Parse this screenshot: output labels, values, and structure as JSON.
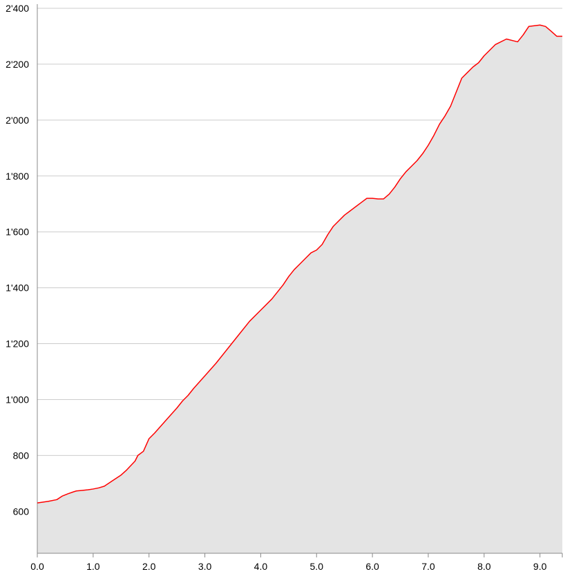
{
  "chart_data": {
    "type": "area",
    "title": "",
    "xlabel": "",
    "ylabel": "",
    "xlim": [
      0,
      9.4
    ],
    "ylim": [
      450,
      2400
    ],
    "grid": true,
    "x_ticks": [
      0,
      1,
      2,
      3,
      4,
      5,
      6,
      7,
      8,
      9
    ],
    "x_tick_labels": [
      "0.0",
      "1.0",
      "2.0",
      "3.0",
      "4.0",
      "5.0",
      "6.0",
      "7.0",
      "8.0",
      "9.0"
    ],
    "y_ticks": [
      600,
      800,
      1000,
      1200,
      1400,
      1600,
      1800,
      2000,
      2200,
      2400
    ],
    "y_tick_labels": [
      "600",
      "800",
      "1'000",
      "1'200",
      "1'400",
      "1'600",
      "1'800",
      "2'000",
      "2'200",
      "2'400"
    ],
    "colors": {
      "line": "#ff0000",
      "fill": "#e4e4e4",
      "grid": "#cccccc",
      "axis": "#888888"
    },
    "series": [
      {
        "x": [
          0,
          0.2,
          0.35,
          0.45,
          0.55,
          0.65,
          0.7,
          0.8,
          0.9,
          1.0,
          1.1,
          1.2,
          1.35,
          1.5,
          1.6,
          1.75,
          1.8,
          1.9,
          2.0,
          2.1,
          2.3,
          2.5,
          2.6,
          2.7,
          2.8,
          3.0,
          3.2,
          3.4,
          3.6,
          3.8,
          4.0,
          4.2,
          4.4,
          4.5,
          4.6,
          4.7,
          4.8,
          4.9,
          5.0,
          5.1,
          5.2,
          5.3,
          5.4,
          5.5,
          5.6,
          5.7,
          5.8,
          5.9,
          6.0,
          6.1,
          6.2,
          6.3,
          6.4,
          6.5,
          6.6,
          6.7,
          6.8,
          6.9,
          7.0,
          7.1,
          7.2,
          7.3,
          7.4,
          7.5,
          7.6,
          7.7,
          7.8,
          7.9,
          8.0,
          8.2,
          8.4,
          8.6,
          8.7,
          8.8,
          9.0,
          9.1,
          9.2,
          9.3,
          9.4
        ],
        "y": [
          630,
          636,
          642,
          655,
          663,
          670,
          673,
          675,
          677,
          680,
          684,
          690,
          710,
          730,
          748,
          780,
          800,
          815,
          860,
          880,
          925,
          970,
          995,
          1015,
          1040,
          1085,
          1130,
          1180,
          1230,
          1280,
          1320,
          1360,
          1410,
          1440,
          1465,
          1485,
          1505,
          1525,
          1535,
          1555,
          1590,
          1620,
          1640,
          1660,
          1675,
          1690,
          1705,
          1720,
          1720,
          1718,
          1718,
          1735,
          1760,
          1790,
          1815,
          1835,
          1855,
          1880,
          1910,
          1945,
          1985,
          2015,
          2050,
          2100,
          2150,
          2170,
          2190,
          2205,
          2230,
          2270,
          2290,
          2280,
          2305,
          2335,
          2340,
          2335,
          2318,
          2300,
          2300
        ]
      }
    ]
  }
}
